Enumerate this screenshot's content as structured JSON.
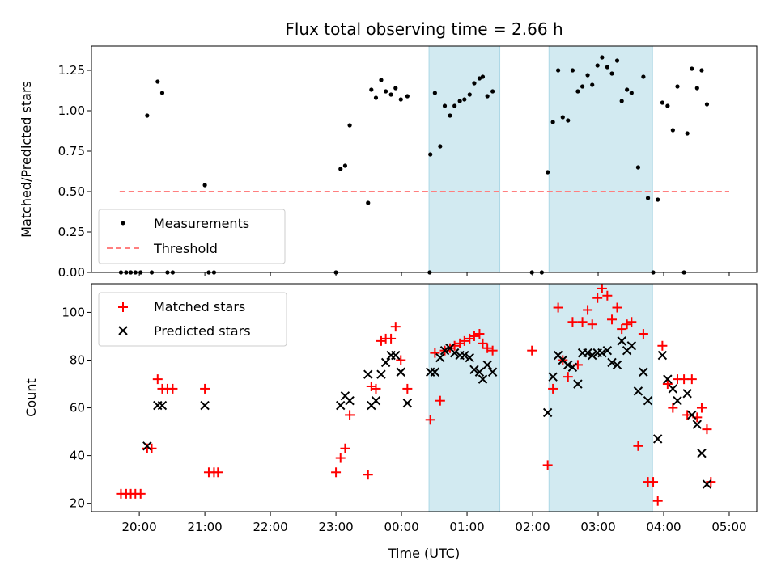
{
  "chart_data": {
    "title": "Flux total observing time = 2.66 h",
    "xlabel": "Time (UTC)",
    "x_unit": "hours relative to 00:00 UTC",
    "xlim": [
      -4.73,
      5.42
    ],
    "x_ticks": [
      {
        "value": -4,
        "label": "20:00"
      },
      {
        "value": -3,
        "label": "21:00"
      },
      {
        "value": -2,
        "label": "22:00"
      },
      {
        "value": -1,
        "label": "23:00"
      },
      {
        "value": 0,
        "label": "00:00"
      },
      {
        "value": 1,
        "label": "01:00"
      },
      {
        "value": 2,
        "label": "02:00"
      },
      {
        "value": 3,
        "label": "03:00"
      },
      {
        "value": 4,
        "label": "04:00"
      },
      {
        "value": 5,
        "label": "05:00"
      }
    ],
    "highlight_spans": [
      [
        0.42,
        1.5
      ],
      [
        2.25,
        3.83
      ]
    ],
    "highlight_color": "#add8e6",
    "top": {
      "type": "scatter",
      "ylabel": "Matched/Predicted stars",
      "ylim": [
        0,
        1.4
      ],
      "y_ticks": [
        "0.00",
        "0.25",
        "0.50",
        "0.75",
        "1.00",
        "1.25"
      ],
      "legend": {
        "position": "lower-left",
        "measurements": "Measurements",
        "threshold": "Threshold"
      },
      "threshold": {
        "value": 0.5,
        "x_range": [
          -4.3,
          5.0
        ],
        "color": "#ff7f7f"
      },
      "measurements": [
        [
          -4.28,
          0
        ],
        [
          -4.2,
          0
        ],
        [
          -4.13,
          0
        ],
        [
          -4.06,
          0
        ],
        [
          -3.98,
          0
        ],
        [
          -3.88,
          0.97
        ],
        [
          -3.81,
          0
        ],
        [
          -3.72,
          1.18
        ],
        [
          -3.65,
          1.11
        ],
        [
          -3.57,
          0
        ],
        [
          -3.49,
          0
        ],
        [
          -3.0,
          0.54
        ],
        [
          -2.94,
          0
        ],
        [
          -2.86,
          0
        ],
        [
          -1.0,
          0
        ],
        [
          -0.93,
          0.64
        ],
        [
          -0.86,
          0.66
        ],
        [
          -0.79,
          0.91
        ],
        [
          -0.51,
          0.43
        ],
        [
          -0.46,
          1.13
        ],
        [
          -0.39,
          1.08
        ],
        [
          -0.31,
          1.19
        ],
        [
          -0.24,
          1.12
        ],
        [
          -0.16,
          1.1
        ],
        [
          -0.09,
          1.14
        ],
        [
          -0.01,
          1.07
        ],
        [
          0.09,
          1.09
        ],
        [
          0.43,
          0
        ],
        [
          0.44,
          0.73
        ],
        [
          0.51,
          1.11
        ],
        [
          0.59,
          0.78
        ],
        [
          0.66,
          1.03
        ],
        [
          0.74,
          0.97
        ],
        [
          0.81,
          1.03
        ],
        [
          0.89,
          1.06
        ],
        [
          0.96,
          1.07
        ],
        [
          1.04,
          1.1
        ],
        [
          1.11,
          1.17
        ],
        [
          1.19,
          1.2
        ],
        [
          1.24,
          1.21
        ],
        [
          1.31,
          1.09
        ],
        [
          1.39,
          1.12
        ],
        [
          1.99,
          0
        ],
        [
          2.14,
          0
        ],
        [
          2.23,
          0.62
        ],
        [
          2.31,
          0.93
        ],
        [
          2.39,
          1.25
        ],
        [
          2.46,
          0.96
        ],
        [
          2.54,
          0.94
        ],
        [
          2.61,
          1.25
        ],
        [
          2.69,
          1.12
        ],
        [
          2.76,
          1.15
        ],
        [
          2.84,
          1.22
        ],
        [
          2.91,
          1.16
        ],
        [
          2.99,
          1.28
        ],
        [
          3.06,
          1.33
        ],
        [
          3.14,
          1.27
        ],
        [
          3.21,
          1.23
        ],
        [
          3.29,
          1.31
        ],
        [
          3.36,
          1.06
        ],
        [
          3.44,
          1.13
        ],
        [
          3.51,
          1.11
        ],
        [
          3.61,
          0.65
        ],
        [
          3.69,
          1.21
        ],
        [
          3.76,
          0.46
        ],
        [
          3.84,
          0
        ],
        [
          3.91,
          0.45
        ],
        [
          3.98,
          1.05
        ],
        [
          4.06,
          1.03
        ],
        [
          4.14,
          0.88
        ],
        [
          4.21,
          1.15
        ],
        [
          4.31,
          0
        ],
        [
          4.36,
          0.86
        ],
        [
          4.43,
          1.26
        ],
        [
          4.51,
          1.14
        ],
        [
          4.58,
          1.25
        ],
        [
          4.66,
          1.04
        ]
      ]
    },
    "bottom": {
      "type": "scatter",
      "ylabel": "Count",
      "ylim": [
        16.5,
        112
      ],
      "y_ticks": [
        20,
        40,
        60,
        80,
        100
      ],
      "legend": {
        "position": "top-left",
        "matched": "Matched stars",
        "predicted": "Predicted stars"
      },
      "matched": [
        [
          -4.28,
          24
        ],
        [
          -4.2,
          24
        ],
        [
          -4.13,
          24
        ],
        [
          -4.06,
          24
        ],
        [
          -3.98,
          24
        ],
        [
          -3.88,
          43
        ],
        [
          -3.81,
          43
        ],
        [
          -3.72,
          72
        ],
        [
          -3.65,
          68
        ],
        [
          -3.57,
          68
        ],
        [
          -3.49,
          68
        ],
        [
          -3.0,
          68
        ],
        [
          -2.94,
          33
        ],
        [
          -2.86,
          33
        ],
        [
          -2.8,
          33
        ],
        [
          -1.0,
          33
        ],
        [
          -0.93,
          39
        ],
        [
          -0.86,
          43
        ],
        [
          -0.79,
          57
        ],
        [
          -0.51,
          32
        ],
        [
          -0.46,
          69
        ],
        [
          -0.39,
          68
        ],
        [
          -0.31,
          88
        ],
        [
          -0.24,
          89
        ],
        [
          -0.16,
          89
        ],
        [
          -0.09,
          94
        ],
        [
          -0.01,
          80
        ],
        [
          0.09,
          68
        ],
        [
          0.44,
          55
        ],
        [
          0.51,
          83
        ],
        [
          0.59,
          63
        ],
        [
          0.66,
          84
        ],
        [
          0.74,
          85
        ],
        [
          0.81,
          86
        ],
        [
          0.89,
          87
        ],
        [
          0.96,
          88
        ],
        [
          1.04,
          89
        ],
        [
          1.11,
          90
        ],
        [
          1.19,
          91
        ],
        [
          1.24,
          87
        ],
        [
          1.31,
          85
        ],
        [
          1.39,
          84
        ],
        [
          1.99,
          84
        ],
        [
          2.23,
          36
        ],
        [
          2.31,
          68
        ],
        [
          2.39,
          102
        ],
        [
          2.46,
          80
        ],
        [
          2.54,
          73
        ],
        [
          2.61,
          96
        ],
        [
          2.69,
          78
        ],
        [
          2.76,
          96
        ],
        [
          2.84,
          101
        ],
        [
          2.91,
          95
        ],
        [
          2.99,
          106
        ],
        [
          3.06,
          110
        ],
        [
          3.14,
          107
        ],
        [
          3.21,
          97
        ],
        [
          3.29,
          102
        ],
        [
          3.36,
          93
        ],
        [
          3.44,
          95
        ],
        [
          3.51,
          96
        ],
        [
          3.61,
          44
        ],
        [
          3.69,
          91
        ],
        [
          3.76,
          29
        ],
        [
          3.84,
          29
        ],
        [
          3.91,
          21
        ],
        [
          3.98,
          86
        ],
        [
          4.06,
          70
        ],
        [
          4.14,
          60
        ],
        [
          4.21,
          72
        ],
        [
          4.31,
          72
        ],
        [
          4.36,
          57
        ],
        [
          4.43,
          72
        ],
        [
          4.51,
          56
        ],
        [
          4.58,
          60
        ],
        [
          4.66,
          51
        ],
        [
          4.72,
          29
        ]
      ],
      "predicted": [
        [
          -3.88,
          44
        ],
        [
          -3.72,
          61
        ],
        [
          -3.65,
          61
        ],
        [
          -3.0,
          61
        ],
        [
          -0.93,
          61
        ],
        [
          -0.86,
          65
        ],
        [
          -0.79,
          63
        ],
        [
          -0.51,
          74
        ],
        [
          -0.46,
          61
        ],
        [
          -0.39,
          63
        ],
        [
          -0.31,
          74
        ],
        [
          -0.24,
          79
        ],
        [
          -0.16,
          82
        ],
        [
          -0.09,
          82
        ],
        [
          -0.01,
          75
        ],
        [
          0.09,
          62
        ],
        [
          0.44,
          75
        ],
        [
          0.51,
          75
        ],
        [
          0.59,
          81
        ],
        [
          0.66,
          84
        ],
        [
          0.74,
          85
        ],
        [
          0.81,
          83
        ],
        [
          0.89,
          82
        ],
        [
          0.96,
          82
        ],
        [
          1.04,
          81
        ],
        [
          1.11,
          76
        ],
        [
          1.19,
          75
        ],
        [
          1.24,
          72
        ],
        [
          1.31,
          78
        ],
        [
          1.39,
          75
        ],
        [
          2.23,
          58
        ],
        [
          2.31,
          73
        ],
        [
          2.39,
          82
        ],
        [
          2.46,
          80
        ],
        [
          2.54,
          78
        ],
        [
          2.61,
          77
        ],
        [
          2.69,
          70
        ],
        [
          2.76,
          83
        ],
        [
          2.84,
          83
        ],
        [
          2.91,
          82
        ],
        [
          2.99,
          83
        ],
        [
          3.06,
          83
        ],
        [
          3.14,
          84
        ],
        [
          3.21,
          79
        ],
        [
          3.29,
          78
        ],
        [
          3.36,
          88
        ],
        [
          3.44,
          84
        ],
        [
          3.51,
          86
        ],
        [
          3.61,
          67
        ],
        [
          3.69,
          75
        ],
        [
          3.76,
          63
        ],
        [
          3.91,
          47
        ],
        [
          3.98,
          82
        ],
        [
          4.06,
          72
        ],
        [
          4.14,
          68
        ],
        [
          4.21,
          63
        ],
        [
          4.36,
          66
        ],
        [
          4.43,
          57
        ],
        [
          4.51,
          53
        ],
        [
          4.58,
          41
        ],
        [
          4.66,
          28
        ]
      ]
    }
  }
}
